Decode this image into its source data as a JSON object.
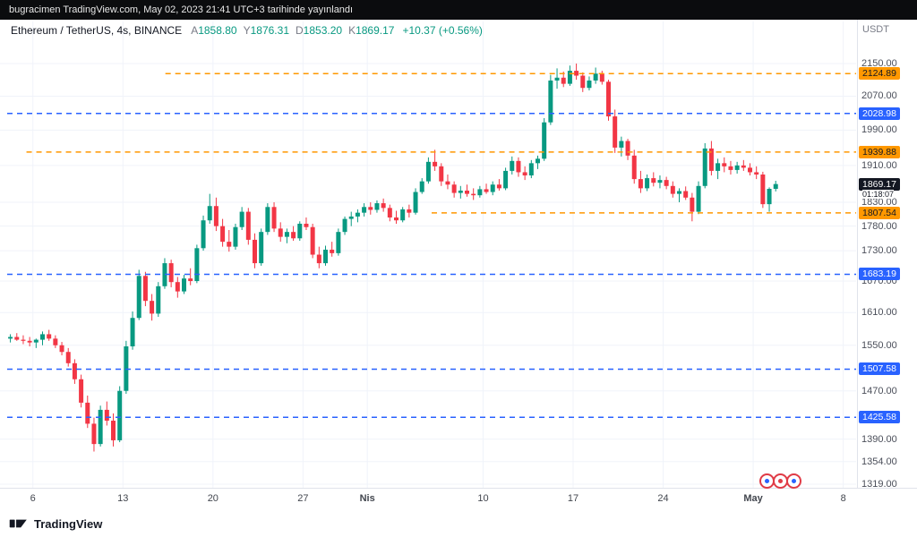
{
  "publish_bar": {
    "text": "bugracimen TradingView.com, May 02, 2023 21:41 UTC+3 tarihinde yayınlandı"
  },
  "legend": {
    "symbol": "Ethereum / TetherUS, 4s, BINANCE",
    "open_label": "A",
    "open": "1858.80",
    "high_label": "Y",
    "high": "1876.31",
    "low_label": "D",
    "low": "1853.20",
    "close_label": "K",
    "close": "1869.17",
    "change": "+10.37 (+0.56%)",
    "currency": "USDT"
  },
  "price_axis": {
    "current_price": "1869.17",
    "countdown": "01:18:07",
    "labels": [
      "2150.00",
      "2070.00",
      "1990.00",
      "1910.00",
      "1830.00",
      "1780.00",
      "1730.00",
      "1670.00",
      "1610.00",
      "1550.00",
      "1470.00",
      "1390.00",
      "1354.00",
      "1319.00"
    ]
  },
  "time_axis": {
    "labels": [
      {
        "text": "6",
        "day": 2,
        "bold": false
      },
      {
        "text": "13",
        "day": 9,
        "bold": false
      },
      {
        "text": "20",
        "day": 16,
        "bold": false
      },
      {
        "text": "27",
        "day": 23,
        "bold": false
      },
      {
        "text": "Nis",
        "day": 28,
        "bold": true
      },
      {
        "text": "10",
        "day": 37,
        "bold": false
      },
      {
        "text": "17",
        "day": 44,
        "bold": false
      },
      {
        "text": "24",
        "day": 51,
        "bold": false
      },
      {
        "text": "May",
        "day": 58,
        "bold": true
      },
      {
        "text": "8",
        "day": 65,
        "bold": false
      }
    ]
  },
  "chart_data": {
    "type": "candlestick",
    "title": "Ethereum / TetherUS, 4s, BINANCE",
    "scale": "log",
    "ylim": [
      1319,
      2150
    ],
    "days_span": 66,
    "bar_interval_days": 0.5,
    "up_color": "#089981",
    "down_color": "#f23645",
    "grid": true,
    "last_price": 1869.17,
    "countdown": "01:18:07",
    "lines": [
      {
        "price": 2124.89,
        "label": "2124.89",
        "color": "#ff9800",
        "style": "dashed",
        "start_day": 12.3
      },
      {
        "price": 1939.88,
        "label": "1939.88",
        "color": "#ff9800",
        "style": "dashed",
        "start_day": 1.5
      },
      {
        "price": 1807.54,
        "label": "1807.54",
        "color": "#ff9800",
        "style": "dashed",
        "start_day": 33
      },
      {
        "price": 2028.98,
        "label": "2028.98",
        "color": "#2962ff",
        "style": "dashed",
        "start_day": 0
      },
      {
        "price": 1683.19,
        "label": "1683.19",
        "color": "#2962ff",
        "style": "dashed",
        "start_day": 0
      },
      {
        "price": 1507.58,
        "label": "1507.58",
        "color": "#2962ff",
        "style": "dashed",
        "start_day": 0
      },
      {
        "price": 1425.58,
        "label": "1425.58",
        "color": "#2962ff",
        "style": "dashed",
        "start_day": 0
      }
    ],
    "candles": [
      [
        1562,
        1570,
        1555,
        1565
      ],
      [
        1565,
        1572,
        1558,
        1560
      ],
      [
        1560,
        1568,
        1552,
        1558
      ],
      [
        1558,
        1565,
        1548,
        1555
      ],
      [
        1555,
        1562,
        1545,
        1560
      ],
      [
        1560,
        1575,
        1550,
        1570
      ],
      [
        1570,
        1578,
        1558,
        1562
      ],
      [
        1562,
        1568,
        1545,
        1550
      ],
      [
        1550,
        1556,
        1532,
        1538
      ],
      [
        1538,
        1545,
        1512,
        1518
      ],
      [
        1518,
        1525,
        1482,
        1490
      ],
      [
        1490,
        1498,
        1442,
        1450
      ],
      [
        1450,
        1462,
        1408,
        1415
      ],
      [
        1415,
        1425,
        1370,
        1382
      ],
      [
        1382,
        1445,
        1378,
        1438
      ],
      [
        1438,
        1452,
        1412,
        1420
      ],
      [
        1420,
        1432,
        1378,
        1388
      ],
      [
        1388,
        1478,
        1385,
        1470
      ],
      [
        1470,
        1558,
        1465,
        1548
      ],
      [
        1548,
        1612,
        1542,
        1600
      ],
      [
        1600,
        1692,
        1596,
        1680
      ],
      [
        1680,
        1688,
        1622,
        1632
      ],
      [
        1632,
        1645,
        1595,
        1608
      ],
      [
        1608,
        1668,
        1602,
        1660
      ],
      [
        1660,
        1715,
        1655,
        1705
      ],
      [
        1705,
        1712,
        1658,
        1668
      ],
      [
        1668,
        1678,
        1638,
        1650
      ],
      [
        1650,
        1682,
        1645,
        1675
      ],
      [
        1675,
        1695,
        1662,
        1670
      ],
      [
        1670,
        1742,
        1666,
        1735
      ],
      [
        1735,
        1802,
        1730,
        1792
      ],
      [
        1792,
        1848,
        1785,
        1822
      ],
      [
        1822,
        1840,
        1770,
        1780
      ],
      [
        1780,
        1795,
        1738,
        1748
      ],
      [
        1748,
        1772,
        1728,
        1738
      ],
      [
        1738,
        1785,
        1732,
        1778
      ],
      [
        1778,
        1820,
        1772,
        1810
      ],
      [
        1810,
        1818,
        1742,
        1752
      ],
      [
        1752,
        1765,
        1695,
        1705
      ],
      [
        1705,
        1775,
        1700,
        1768
      ],
      [
        1768,
        1828,
        1762,
        1820
      ],
      [
        1820,
        1830,
        1768,
        1775
      ],
      [
        1775,
        1788,
        1748,
        1758
      ],
      [
        1758,
        1775,
        1745,
        1768
      ],
      [
        1768,
        1780,
        1750,
        1755
      ],
      [
        1755,
        1790,
        1750,
        1785
      ],
      [
        1785,
        1798,
        1772,
        1778
      ],
      [
        1778,
        1785,
        1715,
        1722
      ],
      [
        1722,
        1738,
        1695,
        1705
      ],
      [
        1705,
        1740,
        1700,
        1732
      ],
      [
        1732,
        1748,
        1718,
        1725
      ],
      [
        1725,
        1775,
        1720,
        1768
      ],
      [
        1768,
        1800,
        1762,
        1795
      ],
      [
        1795,
        1810,
        1780,
        1800
      ],
      [
        1800,
        1815,
        1788,
        1808
      ],
      [
        1808,
        1828,
        1800,
        1820
      ],
      [
        1820,
        1830,
        1804,
        1814
      ],
      [
        1814,
        1834,
        1808,
        1828
      ],
      [
        1828,
        1838,
        1810,
        1818
      ],
      [
        1818,
        1825,
        1790,
        1798
      ],
      [
        1798,
        1812,
        1785,
        1792
      ],
      [
        1792,
        1820,
        1788,
        1815
      ],
      [
        1815,
        1825,
        1798,
        1808
      ],
      [
        1808,
        1860,
        1804,
        1852
      ],
      [
        1852,
        1882,
        1848,
        1875
      ],
      [
        1875,
        1928,
        1870,
        1918
      ],
      [
        1918,
        1945,
        1898,
        1908
      ],
      [
        1908,
        1915,
        1865,
        1875
      ],
      [
        1875,
        1890,
        1858,
        1868
      ],
      [
        1868,
        1875,
        1840,
        1850
      ],
      [
        1850,
        1865,
        1838,
        1855
      ],
      [
        1855,
        1868,
        1842,
        1848
      ],
      [
        1848,
        1860,
        1835,
        1845
      ],
      [
        1845,
        1865,
        1840,
        1858
      ],
      [
        1858,
        1870,
        1848,
        1852
      ],
      [
        1852,
        1875,
        1845,
        1868
      ],
      [
        1868,
        1880,
        1855,
        1860
      ],
      [
        1860,
        1905,
        1856,
        1898
      ],
      [
        1898,
        1930,
        1890,
        1920
      ],
      [
        1920,
        1928,
        1885,
        1895
      ],
      [
        1895,
        1908,
        1878,
        1888
      ],
      [
        1888,
        1922,
        1882,
        1915
      ],
      [
        1915,
        1932,
        1902,
        1925
      ],
      [
        1925,
        2018,
        1920,
        2008
      ],
      [
        2008,
        2122,
        2002,
        2108
      ],
      [
        2108,
        2138,
        2088,
        2115
      ],
      [
        2115,
        2130,
        2092,
        2100
      ],
      [
        2100,
        2145,
        2095,
        2132
      ],
      [
        2132,
        2150,
        2110,
        2120
      ],
      [
        2120,
        2128,
        2080,
        2090
      ],
      [
        2090,
        2118,
        2084,
        2108
      ],
      [
        2108,
        2140,
        2100,
        2125
      ],
      [
        2125,
        2132,
        2098,
        2105
      ],
      [
        2105,
        2110,
        2012,
        2022
      ],
      [
        2022,
        2038,
        1938,
        1950
      ],
      [
        1950,
        1975,
        1930,
        1965
      ],
      [
        1965,
        1970,
        1922,
        1932
      ],
      [
        1932,
        1945,
        1870,
        1880
      ],
      [
        1880,
        1898,
        1850,
        1860
      ],
      [
        1860,
        1890,
        1854,
        1882
      ],
      [
        1882,
        1895,
        1864,
        1872
      ],
      [
        1872,
        1888,
        1860,
        1878
      ],
      [
        1878,
        1885,
        1858,
        1865
      ],
      [
        1865,
        1875,
        1840,
        1848
      ],
      [
        1848,
        1860,
        1830,
        1854
      ],
      [
        1854,
        1864,
        1835,
        1840
      ],
      [
        1840,
        1850,
        1790,
        1810
      ],
      [
        1810,
        1875,
        1805,
        1865
      ],
      [
        1865,
        1960,
        1860,
        1948
      ],
      [
        1948,
        1965,
        1888,
        1898
      ],
      [
        1898,
        1925,
        1880,
        1915
      ],
      [
        1915,
        1928,
        1895,
        1908
      ],
      [
        1908,
        1920,
        1890,
        1900
      ],
      [
        1900,
        1918,
        1892,
        1910
      ],
      [
        1910,
        1922,
        1898,
        1905
      ],
      [
        1905,
        1915,
        1888,
        1895
      ],
      [
        1895,
        1908,
        1880,
        1890
      ],
      [
        1890,
        1896,
        1818,
        1826
      ],
      [
        1826,
        1862,
        1810,
        1858.8
      ],
      [
        1858.8,
        1876.31,
        1853.2,
        1869.17
      ]
    ]
  },
  "stamps": {
    "count": 3
  },
  "footer": {
    "brand": "TradingView"
  }
}
